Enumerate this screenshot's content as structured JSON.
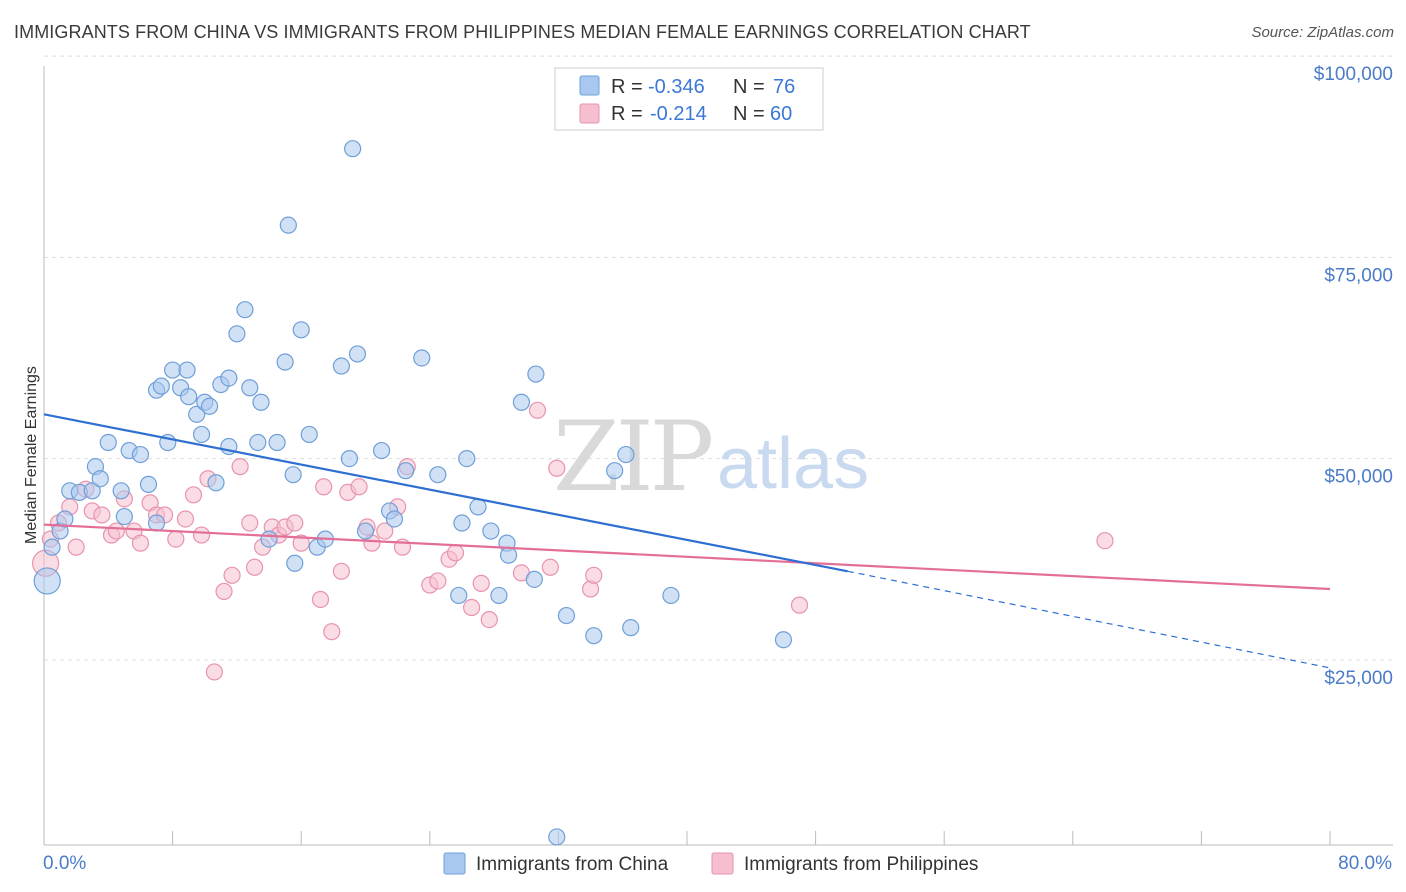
{
  "title": "IMMIGRANTS FROM CHINA VS IMMIGRANTS FROM PHILIPPINES MEDIAN FEMALE EARNINGS CORRELATION CHART",
  "source": "Source: ZipAtlas.com",
  "watermark": {
    "zip": "ZIP",
    "atlas": "atlas"
  },
  "colors": {
    "china_fill": "#a9c8ef",
    "china_stroke": "#6f9fd8",
    "china_line": "#2e6fd1",
    "phil_fill": "#f6bfd0",
    "phil_stroke": "#e893ae",
    "phil_line": "#e36e96",
    "grid": "#dddddd",
    "tick_text": "#4a7cc7"
  },
  "legend": {
    "china": {
      "r_label": "R = ",
      "r_value": "-0.346",
      "n_label": "N = ",
      "n_value": "76"
    },
    "phil": {
      "r_label": "R = ",
      "r_value": "-0.214",
      "n_label": "N = ",
      "n_value": "60"
    }
  },
  "chart_data": {
    "type": "scatter",
    "title": "IMMIGRANTS FROM CHINA VS IMMIGRANTS FROM PHILIPPINES MEDIAN FEMALE EARNINGS CORRELATION CHART",
    "xlabel": "",
    "ylabel": "Median Female Earnings",
    "xlim": [
      0,
      80
    ],
    "ylim": [
      2000,
      102000
    ],
    "x_tick_labels": [
      {
        "value": 0,
        "label": "0.0%"
      },
      {
        "value": 80,
        "label": "80.0%"
      }
    ],
    "y_tick_labels": [
      {
        "value": 25000,
        "label": "$25,000"
      },
      {
        "value": 50000,
        "label": "$50,000"
      },
      {
        "value": 75000,
        "label": "$75,000"
      },
      {
        "value": 100000,
        "label": "$100,000"
      }
    ],
    "series": [
      {
        "name": "Immigrants from China",
        "points": [
          [
            0.2,
            34800
          ],
          [
            0.5,
            39000
          ],
          [
            1.0,
            41000
          ],
          [
            1.3,
            42500
          ],
          [
            1.6,
            46000
          ],
          [
            2.2,
            45800
          ],
          [
            3.0,
            46000
          ],
          [
            3.2,
            49000
          ],
          [
            3.5,
            47500
          ],
          [
            4.0,
            52000
          ],
          [
            4.8,
            46000
          ],
          [
            5.0,
            42800
          ],
          [
            5.3,
            51000
          ],
          [
            6.0,
            50500
          ],
          [
            6.5,
            46800
          ],
          [
            7.0,
            58500
          ],
          [
            7.3,
            59000
          ],
          [
            7.7,
            52000
          ],
          [
            8.0,
            61000
          ],
          [
            8.5,
            58800
          ],
          [
            8.9,
            61000
          ],
          [
            9.0,
            57700
          ],
          [
            9.5,
            55500
          ],
          [
            10.0,
            57000
          ],
          [
            10.3,
            56500
          ],
          [
            10.7,
            47000
          ],
          [
            11.0,
            59200
          ],
          [
            11.5,
            60000
          ],
          [
            12.0,
            65500
          ],
          [
            12.5,
            68500
          ],
          [
            12.8,
            58800
          ],
          [
            13.3,
            52000
          ],
          [
            13.5,
            57000
          ],
          [
            14.0,
            40000
          ],
          [
            14.5,
            52000
          ],
          [
            15.0,
            62000
          ],
          [
            15.2,
            79000
          ],
          [
            15.5,
            48000
          ],
          [
            15.6,
            37000
          ],
          [
            16.0,
            66000
          ],
          [
            16.5,
            53000
          ],
          [
            17.0,
            39000
          ],
          [
            17.5,
            40000
          ],
          [
            18.5,
            61500
          ],
          [
            19.0,
            50000
          ],
          [
            19.2,
            88500
          ],
          [
            19.5,
            63000
          ],
          [
            20.0,
            41000
          ],
          [
            21.0,
            51000
          ],
          [
            21.5,
            43500
          ],
          [
            21.8,
            42500
          ],
          [
            22.5,
            48500
          ],
          [
            23.5,
            62500
          ],
          [
            24.5,
            48000
          ],
          [
            25.8,
            33000
          ],
          [
            26.0,
            42000
          ],
          [
            26.3,
            50000
          ],
          [
            27.0,
            44000
          ],
          [
            27.8,
            41000
          ],
          [
            28.3,
            33000
          ],
          [
            28.8,
            39500
          ],
          [
            28.9,
            38000
          ],
          [
            29.7,
            57000
          ],
          [
            30.5,
            35000
          ],
          [
            30.6,
            60500
          ],
          [
            31.9,
            3000
          ],
          [
            32.5,
            30500
          ],
          [
            34.2,
            28000
          ],
          [
            35.5,
            48500
          ],
          [
            36.2,
            50500
          ],
          [
            36.5,
            29000
          ],
          [
            39.0,
            33000
          ],
          [
            46.0,
            27500
          ],
          [
            11.5,
            51500
          ],
          [
            7.0,
            42000
          ],
          [
            9.8,
            53000
          ]
        ]
      },
      {
        "name": "Immigrants from Philippines",
        "points": [
          [
            0.1,
            37000
          ],
          [
            0.4,
            40000
          ],
          [
            0.9,
            42000
          ],
          [
            1.6,
            44000
          ],
          [
            2.0,
            39000
          ],
          [
            2.6,
            46200
          ],
          [
            3.0,
            43500
          ],
          [
            3.6,
            43000
          ],
          [
            4.2,
            40500
          ],
          [
            4.5,
            41000
          ],
          [
            5.0,
            45000
          ],
          [
            5.6,
            41000
          ],
          [
            6.0,
            39500
          ],
          [
            6.6,
            44500
          ],
          [
            7.0,
            43000
          ],
          [
            7.5,
            43000
          ],
          [
            8.2,
            40000
          ],
          [
            8.8,
            42500
          ],
          [
            9.3,
            45500
          ],
          [
            9.8,
            40500
          ],
          [
            10.2,
            47500
          ],
          [
            10.6,
            23500
          ],
          [
            11.2,
            33500
          ],
          [
            11.7,
            35500
          ],
          [
            12.2,
            49000
          ],
          [
            12.8,
            42000
          ],
          [
            13.1,
            36500
          ],
          [
            13.6,
            39000
          ],
          [
            14.2,
            41500
          ],
          [
            14.6,
            40500
          ],
          [
            15.0,
            41500
          ],
          [
            15.6,
            42000
          ],
          [
            16.0,
            39500
          ],
          [
            17.2,
            32500
          ],
          [
            17.4,
            46500
          ],
          [
            17.9,
            28500
          ],
          [
            18.5,
            36000
          ],
          [
            18.9,
            45800
          ],
          [
            19.6,
            46500
          ],
          [
            20.1,
            41500
          ],
          [
            20.4,
            39500
          ],
          [
            21.2,
            41000
          ],
          [
            22.0,
            44000
          ],
          [
            22.3,
            39000
          ],
          [
            22.6,
            49000
          ],
          [
            24.0,
            34300
          ],
          [
            24.5,
            34800
          ],
          [
            25.2,
            37500
          ],
          [
            25.6,
            38300
          ],
          [
            26.6,
            31500
          ],
          [
            27.2,
            34500
          ],
          [
            27.7,
            30000
          ],
          [
            29.7,
            35800
          ],
          [
            30.7,
            56000
          ],
          [
            31.5,
            36500
          ],
          [
            31.9,
            48800
          ],
          [
            34.0,
            33800
          ],
          [
            34.2,
            35500
          ],
          [
            47.0,
            31800
          ],
          [
            66.0,
            39800
          ]
        ]
      }
    ],
    "trend_lines": [
      {
        "series": "Immigrants from China",
        "solid": [
          [
            0,
            55500
          ],
          [
            50,
            36000
          ]
        ],
        "dashed": [
          [
            50,
            36000
          ],
          [
            80,
            24000
          ]
        ]
      },
      {
        "series": "Immigrants from Philippines",
        "solid": [
          [
            0,
            41800
          ],
          [
            80,
            33800
          ]
        ]
      }
    ]
  },
  "bottom_legend": {
    "china": "Immigrants from China",
    "phil": "Immigrants from Philippines"
  },
  "axis": {
    "ylabel": "Median Female Earnings",
    "x_min_label": "0.0%",
    "x_max_label": "80.0%"
  }
}
